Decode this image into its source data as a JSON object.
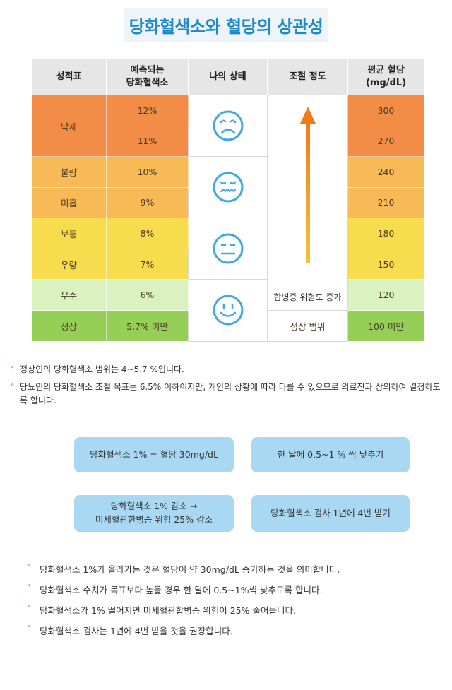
{
  "title": "당화혈색소와 혈당의 상관성",
  "table": {
    "headers": [
      "성적표",
      "예측되는\n당화혈색소",
      "나의 상태",
      "조절 정도",
      "평균 혈당\n(mg/dL)"
    ],
    "header_lines": [
      [
        "성적표"
      ],
      [
        "예측되는",
        "당화혈색소"
      ],
      [
        "나의 상태"
      ],
      [
        "조절 정도"
      ],
      [
        "평균 혈당",
        "(mg/dL)"
      ]
    ],
    "rows": [
      {
        "grade": "낙제",
        "a1c": "12%",
        "glucose": "300"
      },
      {
        "grade": "",
        "a1c": "11%",
        "glucose": "270"
      },
      {
        "grade": "불량",
        "a1c": "10%",
        "glucose": "240"
      },
      {
        "grade": "미흡",
        "a1c": "9%",
        "glucose": "210"
      },
      {
        "grade": "보통",
        "a1c": "8%",
        "glucose": "180"
      },
      {
        "grade": "우량",
        "a1c": "7%",
        "glucose": "150"
      },
      {
        "grade": "우수",
        "a1c": "6%",
        "glucose": "120"
      },
      {
        "grade": "정상",
        "a1c": "5.7% 미만",
        "glucose": "100 미만"
      }
    ],
    "risk_label": "합병증 위험도 증가",
    "normal_label": "정상 범위",
    "faces": [
      "sad-face-icon",
      "worried-face-icon",
      "neutral-face-icon",
      "smile-face-icon"
    ]
  },
  "colors": {
    "orange": "#f28c46",
    "light_orange": "#f7ba56",
    "yellow": "#f7dc4d",
    "light_green": "#d9f2c0",
    "green": "#96cf58",
    "header": "#e6e6e6",
    "face": "#3fa9e0",
    "arrow": "#f07a1a",
    "accent": "#1e88c8",
    "pill": "#a9d8f3"
  },
  "notes": [
    "정상인의 당화혈색소 범위는 4~5.7 %입니다.",
    "당뇨인의 당화혈색소 조절 목표는 6.5% 이하이지만, 개인의 상황에 따라 다를 수 있으므로 의료진과 상의하여 결정하도록 합니다."
  ],
  "pills": {
    "p1": "당화혈색소 1% = 혈당 30mg/dL",
    "p2": "한 달에 0.5~1 % 씩 낮추기",
    "p3_line1": "당화혈색소 1% 감소 →",
    "p3_line2": "미세혈관한병증 위험 25% 감소",
    "p4": "당화혈색소 검사 1년에 4번 받기"
  },
  "notes2": [
    "당화혈색소 1%가 올라가는 것은  혈당이 약 30mg/dL 증가하는 것을 의미합니다.",
    "당화혈색소 수치가 목표보다 높을 경우 한 달에 0.5~1%씩 낮추도록 합니다.",
    "당화혈색소가 1% 떨어지면 미세혈관합병증 위험이 25% 줄어듭니다.",
    "당화혈색소 검사는 1년에 4번 받을 것을 권장합니다."
  ],
  "bullet": "⚬"
}
